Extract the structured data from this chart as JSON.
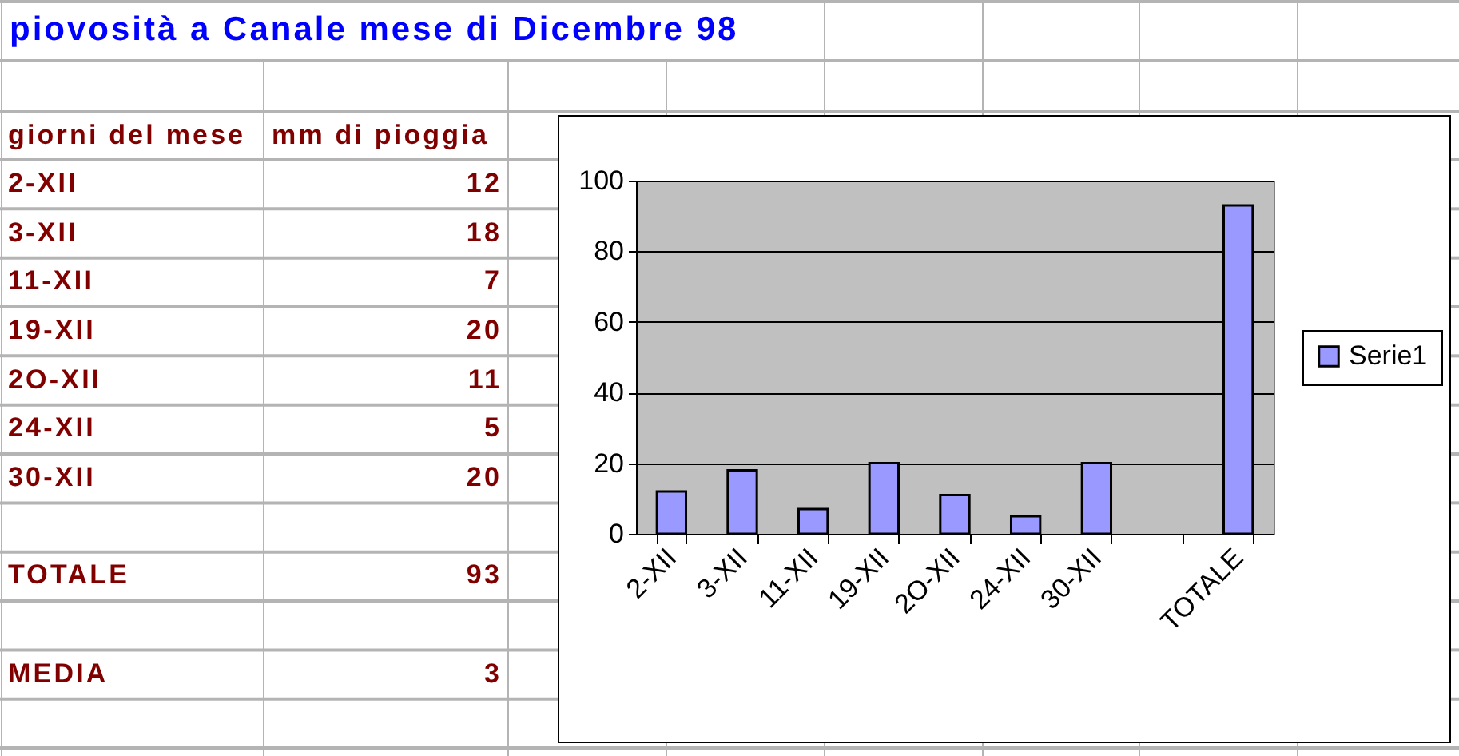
{
  "chart_data": [
    {
      "type": "other",
      "title": "piovosità a Canale mese di Dicembre 98",
      "annotations": [
        "giorni del mese",
        "mm di pioggia"
      ],
      "categories": [
        "2-XII",
        "3-XII",
        "11-XII",
        "19-XII",
        "2O-XII",
        "24-XII",
        "30-XII",
        null,
        "TOTALE",
        null,
        "MEDIA"
      ],
      "values": [
        12,
        18,
        7,
        20,
        11,
        5,
        20,
        null,
        93,
        null,
        3
      ],
      "data_labels": true
    },
    {
      "type": "bar",
      "categories": [
        "2-XII",
        "3-XII",
        "11-XII",
        "19-XII",
        "2O-XII",
        "24-XII",
        "30-XII",
        null,
        "TOTALE"
      ],
      "series": [
        {
          "name": "Serie1",
          "color": "#9999ff",
          "values": [
            12,
            18,
            7,
            20,
            11,
            5,
            20,
            null,
            93
          ]
        }
      ],
      "ylim": [
        0,
        100
      ],
      "yticks": [
        0,
        20,
        40,
        60,
        80,
        100
      ],
      "grid": "y",
      "legend": "right"
    }
  ]
}
